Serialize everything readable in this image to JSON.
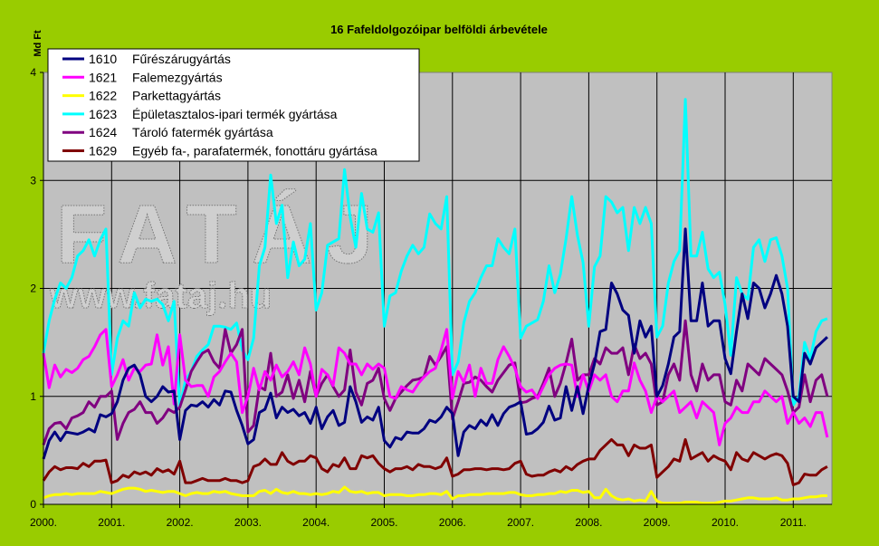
{
  "chart_data": {
    "type": "line",
    "title": "16 Fafeldolgozóipar belföldi árbevétele",
    "ylabel": "Md Ft",
    "xlabel": "",
    "ylim": [
      0,
      4
    ],
    "yticks": [
      "0",
      "1",
      "2",
      "3",
      "4"
    ],
    "xticks": [
      "2000.",
      "2001.",
      "2002.",
      "2003.",
      "2004.",
      "2005.",
      "2006.",
      "2007.",
      "2008.",
      "2009.",
      "2010.",
      "2011."
    ],
    "x_start": "2000-01",
    "x_frequency": "monthly",
    "grid": true,
    "legend_position": "top-left",
    "watermark": [
      "FATÁJ",
      "www.fataj.hu"
    ],
    "series": [
      {
        "code": "1610",
        "name": "Fűrészárugyártás",
        "color": "#000080",
        "values": [
          0.42,
          0.59,
          0.67,
          0.59,
          0.67,
          0.66,
          0.65,
          0.67,
          0.7,
          0.67,
          0.83,
          0.81,
          0.84,
          0.95,
          1.15,
          1.26,
          1.29,
          1.2,
          1.0,
          0.95,
          1.0,
          1.09,
          1.04,
          1.05,
          0.6,
          0.87,
          0.92,
          0.91,
          0.95,
          0.9,
          0.97,
          0.92,
          1.05,
          1.04,
          0.87,
          0.73,
          0.56,
          0.6,
          0.85,
          0.88,
          1.03,
          0.8,
          0.9,
          0.85,
          0.88,
          0.82,
          0.85,
          0.75,
          0.9,
          0.7,
          0.81,
          0.87,
          0.73,
          0.76,
          1.09,
          0.95,
          0.76,
          0.81,
          0.78,
          0.9,
          0.59,
          0.53,
          0.62,
          0.6,
          0.67,
          0.66,
          0.66,
          0.7,
          0.78,
          0.76,
          0.81,
          0.9,
          0.84,
          0.45,
          0.67,
          0.73,
          0.7,
          0.78,
          0.73,
          0.83,
          0.73,
          0.84,
          0.9,
          0.92,
          0.95,
          0.65,
          0.66,
          0.7,
          0.76,
          0.91,
          0.78,
          0.8,
          1.09,
          0.87,
          1.09,
          0.84,
          1.1,
          1.3,
          1.6,
          1.62,
          2.05,
          1.95,
          1.8,
          1.75,
          1.4,
          1.7,
          1.55,
          1.65,
          1.0,
          1.1,
          1.3,
          1.55,
          1.6,
          2.55,
          1.7,
          1.7,
          2.05,
          1.65,
          1.7,
          1.7,
          1.35,
          1.21,
          1.6,
          1.95,
          1.72,
          2.05,
          2.0,
          1.82,
          1.95,
          2.12,
          1.95,
          1.65,
          1.0,
          0.95,
          1.4,
          1.3,
          1.45,
          1.5,
          1.55
        ]
      },
      {
        "code": "1621",
        "name": "Falemezgyártás",
        "color": "#FF00FF",
        "values": [
          1.4,
          1.08,
          1.29,
          1.18,
          1.25,
          1.22,
          1.26,
          1.34,
          1.37,
          1.46,
          1.57,
          1.62,
          1.09,
          1.2,
          1.34,
          1.15,
          1.26,
          1.23,
          1.29,
          1.3,
          1.57,
          1.29,
          1.46,
          0.93,
          1.57,
          1.15,
          1.09,
          1.1,
          1.1,
          1.0,
          1.18,
          1.23,
          1.32,
          1.4,
          1.32,
          0.85,
          1.0,
          1.26,
          1.06,
          1.23,
          1.15,
          1.29,
          1.18,
          1.23,
          1.32,
          1.2,
          1.45,
          1.3,
          1.0,
          1.25,
          1.2,
          1.1,
          1.45,
          1.4,
          1.3,
          1.3,
          1.2,
          1.3,
          1.25,
          1.3,
          1.26,
          1.0,
          0.98,
          1.09,
          1.06,
          1.04,
          1.12,
          1.18,
          1.23,
          1.26,
          1.43,
          1.62,
          0.98,
          1.23,
          1.13,
          1.29,
          1.0,
          1.26,
          1.12,
          1.12,
          1.34,
          1.46,
          1.37,
          1.26,
          1.09,
          1.04,
          1.06,
          0.98,
          1.09,
          1.2,
          1.26,
          1.29,
          1.3,
          1.29,
          1.0,
          1.2,
          1.05,
          1.2,
          1.15,
          1.2,
          1.0,
          0.95,
          1.05,
          1.05,
          1.31,
          1.15,
          1.05,
          0.85,
          1.0,
          0.95,
          1.0,
          1.05,
          0.85,
          0.9,
          0.95,
          0.8,
          0.95,
          0.9,
          0.85,
          0.55,
          0.75,
          0.8,
          0.9,
          0.85,
          0.85,
          0.95,
          0.95,
          1.05,
          1.0,
          0.95,
          1.0,
          0.75,
          0.85,
          0.75,
          0.8,
          0.72,
          0.85,
          0.85,
          0.62
        ]
      },
      {
        "code": "1622",
        "name": "Parkettagyártás",
        "color": "#FFFF00",
        "values": [
          0.06,
          0.08,
          0.09,
          0.09,
          0.1,
          0.09,
          0.1,
          0.1,
          0.1,
          0.1,
          0.12,
          0.11,
          0.1,
          0.12,
          0.14,
          0.15,
          0.15,
          0.14,
          0.12,
          0.13,
          0.12,
          0.11,
          0.12,
          0.12,
          0.1,
          0.08,
          0.1,
          0.11,
          0.1,
          0.1,
          0.12,
          0.11,
          0.12,
          0.1,
          0.09,
          0.08,
          0.08,
          0.08,
          0.12,
          0.13,
          0.1,
          0.14,
          0.11,
          0.1,
          0.12,
          0.1,
          0.1,
          0.09,
          0.1,
          0.09,
          0.1,
          0.12,
          0.11,
          0.16,
          0.12,
          0.11,
          0.12,
          0.1,
          0.11,
          0.11,
          0.08,
          0.09,
          0.09,
          0.09,
          0.08,
          0.08,
          0.09,
          0.09,
          0.1,
          0.1,
          0.09,
          0.12,
          0.05,
          0.08,
          0.08,
          0.09,
          0.09,
          0.09,
          0.1,
          0.1,
          0.1,
          0.1,
          0.11,
          0.11,
          0.09,
          0.08,
          0.08,
          0.09,
          0.09,
          0.1,
          0.1,
          0.12,
          0.11,
          0.13,
          0.13,
          0.11,
          0.12,
          0.06,
          0.06,
          0.14,
          0.08,
          0.05,
          0.04,
          0.05,
          0.03,
          0.04,
          0.03,
          0.12,
          0.03,
          0.01,
          0.01,
          0.01,
          0.01,
          0.02,
          0.02,
          0.02,
          0.01,
          0.01,
          0.01,
          0.02,
          0.03,
          0.03,
          0.04,
          0.05,
          0.06,
          0.06,
          0.05,
          0.05,
          0.05,
          0.06,
          0.04,
          0.04,
          0.05,
          0.05,
          0.06,
          0.07,
          0.07,
          0.08,
          0.08
        ]
      },
      {
        "code": "1623",
        "name": "Épületasztalos-ipari termék gyártása",
        "color": "#00FFFF",
        "values": [
          1.4,
          1.7,
          1.9,
          2.05,
          2.0,
          2.1,
          2.3,
          2.35,
          2.45,
          2.3,
          2.45,
          2.55,
          1.2,
          1.54,
          1.7,
          1.65,
          1.96,
          1.82,
          1.9,
          1.88,
          1.9,
          1.85,
          1.7,
          1.88,
          0.9,
          1.15,
          1.23,
          1.37,
          1.43,
          1.48,
          1.65,
          1.65,
          1.64,
          1.62,
          1.68,
          1.43,
          1.34,
          1.54,
          2.21,
          2.38,
          3.05,
          2.6,
          2.77,
          2.1,
          2.43,
          2.21,
          2.27,
          2.6,
          1.8,
          1.96,
          2.4,
          2.43,
          2.46,
          3.1,
          2.66,
          2.38,
          2.88,
          2.55,
          2.52,
          2.7,
          1.65,
          1.93,
          1.96,
          2.16,
          2.3,
          2.4,
          2.32,
          2.38,
          2.69,
          2.6,
          2.55,
          2.85,
          1.2,
          1.32,
          1.68,
          1.88,
          1.96,
          2.1,
          2.21,
          2.21,
          2.46,
          2.38,
          2.32,
          2.55,
          1.54,
          1.65,
          1.68,
          1.71,
          1.88,
          2.21,
          1.96,
          2.13,
          2.46,
          2.85,
          2.49,
          2.24,
          1.65,
          2.2,
          2.3,
          2.85,
          2.8,
          2.7,
          2.75,
          2.35,
          2.75,
          2.6,
          2.75,
          2.6,
          1.55,
          1.65,
          2.05,
          2.25,
          2.35,
          3.75,
          2.3,
          2.3,
          2.52,
          2.18,
          2.1,
          2.15,
          1.85,
          1.38,
          2.1,
          1.95,
          1.9,
          2.38,
          2.45,
          2.25,
          2.45,
          2.47,
          2.3,
          2.0,
          0.92,
          1.0,
          1.5,
          1.35,
          1.6,
          1.7,
          1.72
        ]
      },
      {
        "code": "1624",
        "name": "Tároló fatermék gyártása",
        "color": "#800080",
        "values": [
          0.55,
          0.7,
          0.75,
          0.76,
          0.7,
          0.8,
          0.82,
          0.85,
          0.95,
          0.9,
          1.0,
          1.0,
          1.05,
          0.6,
          0.75,
          0.85,
          0.88,
          0.95,
          0.85,
          0.85,
          0.75,
          0.8,
          0.88,
          0.85,
          0.9,
          1.06,
          1.23,
          1.32,
          1.4,
          1.43,
          1.32,
          1.26,
          1.62,
          1.4,
          1.48,
          1.62,
          0.67,
          0.73,
          1.09,
          1.06,
          1.4,
          1.0,
          1.04,
          1.2,
          0.98,
          1.15,
          0.95,
          1.23,
          1.0,
          1.12,
          1.2,
          1.09,
          1.0,
          1.06,
          1.43,
          1.04,
          0.92,
          1.12,
          1.15,
          1.26,
          0.98,
          0.87,
          0.98,
          1.04,
          1.1,
          1.15,
          1.16,
          1.18,
          1.37,
          1.29,
          1.37,
          1.46,
          0.79,
          0.95,
          1.12,
          1.13,
          1.18,
          1.15,
          1.09,
          1.04,
          1.15,
          1.22,
          1.29,
          1.31,
          0.94,
          0.95,
          0.98,
          1.0,
          1.12,
          1.26,
          1.0,
          1.12,
          1.31,
          1.53,
          1.15,
          1.2,
          1.2,
          1.35,
          1.3,
          1.45,
          1.4,
          1.4,
          1.45,
          1.2,
          1.48,
          1.35,
          1.4,
          1.3,
          0.92,
          0.95,
          1.2,
          1.3,
          1.15,
          1.7,
          1.2,
          1.05,
          1.3,
          1.15,
          1.2,
          1.2,
          0.95,
          0.92,
          1.15,
          1.05,
          1.3,
          1.25,
          1.2,
          1.35,
          1.3,
          1.25,
          1.2,
          1.05,
          0.85,
          0.9,
          1.2,
          0.95,
          1.15,
          1.2,
          1.0
        ]
      },
      {
        "code": "1629",
        "name": "Egyéb fa-, parafatermék, fonottáru gyártása",
        "color": "#800000",
        "values": [
          0.22,
          0.3,
          0.35,
          0.32,
          0.34,
          0.34,
          0.33,
          0.38,
          0.35,
          0.4,
          0.4,
          0.41,
          0.2,
          0.22,
          0.27,
          0.25,
          0.3,
          0.28,
          0.3,
          0.27,
          0.33,
          0.3,
          0.32,
          0.28,
          0.4,
          0.2,
          0.2,
          0.22,
          0.24,
          0.22,
          0.22,
          0.22,
          0.24,
          0.22,
          0.22,
          0.2,
          0.22,
          0.35,
          0.37,
          0.42,
          0.37,
          0.37,
          0.48,
          0.4,
          0.37,
          0.4,
          0.4,
          0.45,
          0.43,
          0.33,
          0.3,
          0.37,
          0.35,
          0.43,
          0.33,
          0.33,
          0.45,
          0.43,
          0.45,
          0.38,
          0.33,
          0.3,
          0.33,
          0.33,
          0.35,
          0.32,
          0.37,
          0.35,
          0.35,
          0.33,
          0.35,
          0.43,
          0.26,
          0.28,
          0.32,
          0.32,
          0.33,
          0.33,
          0.32,
          0.33,
          0.33,
          0.32,
          0.33,
          0.38,
          0.4,
          0.28,
          0.26,
          0.27,
          0.27,
          0.3,
          0.32,
          0.3,
          0.35,
          0.32,
          0.37,
          0.4,
          0.42,
          0.42,
          0.5,
          0.55,
          0.6,
          0.55,
          0.55,
          0.45,
          0.55,
          0.52,
          0.52,
          0.55,
          0.25,
          0.3,
          0.35,
          0.42,
          0.4,
          0.6,
          0.42,
          0.45,
          0.48,
          0.4,
          0.45,
          0.42,
          0.4,
          0.32,
          0.48,
          0.42,
          0.4,
          0.48,
          0.45,
          0.42,
          0.45,
          0.47,
          0.45,
          0.38,
          0.18,
          0.2,
          0.28,
          0.27,
          0.27,
          0.32,
          0.35
        ]
      }
    ]
  }
}
